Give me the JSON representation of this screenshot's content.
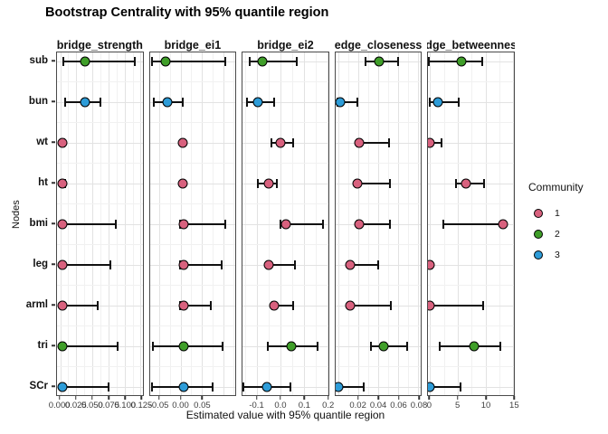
{
  "title": "Bootstrap Centrality with 95% quantile region",
  "x_axis_title": "Estimated value with 95% quantile region",
  "y_axis_title": "Nodes",
  "legend": {
    "title": "Community",
    "items": [
      {
        "label": "1",
        "community": "1"
      },
      {
        "label": "2",
        "community": "2"
      },
      {
        "label": "3",
        "community": "3"
      }
    ]
  },
  "chart_data": {
    "type": "pointrange",
    "orientation": "horizontal",
    "grid": "on",
    "legend_position": "right",
    "y_categories": [
      "sub",
      "bun",
      "wt",
      "ht",
      "bmi",
      "leg",
      "arml",
      "tri",
      "SCr"
    ],
    "community_colors": {
      "1": "#D8617E",
      "2": "#3F9E29",
      "3": "#2D9CD8"
    },
    "facets": [
      {
        "facet": "bridge_strength",
        "xlim": [
          -0.005,
          0.128
        ],
        "ticks": [
          {
            "v": 0.0,
            "label": "0.000"
          },
          {
            "v": 0.025,
            "label": "0.025"
          },
          {
            "v": 0.05,
            "label": "0.050"
          },
          {
            "v": 0.075,
            "label": "0.075"
          },
          {
            "v": 0.1,
            "label": "0.100"
          },
          {
            "v": 0.125,
            "label": "0.125"
          }
        ],
        "points": [
          {
            "node": "sub",
            "community": "2",
            "value": 0.039,
            "lo": 0.003,
            "hi": 0.117
          },
          {
            "node": "bun",
            "community": "3",
            "value": 0.038,
            "lo": 0.006,
            "hi": 0.064
          },
          {
            "node": "wt",
            "community": "1",
            "value": 0.003,
            "lo": 0.001,
            "hi": 0.007
          },
          {
            "node": "ht",
            "community": "1",
            "value": 0.003,
            "lo": 0.001,
            "hi": 0.009
          },
          {
            "node": "bmi",
            "community": "1",
            "value": 0.003,
            "lo": 0.001,
            "hi": 0.088
          },
          {
            "node": "leg",
            "community": "1",
            "value": 0.003,
            "lo": 0.001,
            "hi": 0.08
          },
          {
            "node": "arml",
            "community": "1",
            "value": 0.003,
            "lo": 0.001,
            "hi": 0.06
          },
          {
            "node": "tri",
            "community": "2",
            "value": 0.003,
            "lo": 0.001,
            "hi": 0.091
          },
          {
            "node": "SCr",
            "community": "3",
            "value": 0.003,
            "lo": 0.001,
            "hi": 0.076
          }
        ]
      },
      {
        "facet": "bridge_ei1",
        "xlim": [
          -0.073,
          0.129
        ],
        "ticks": [
          {
            "v": -0.05,
            "label": "-0.05"
          },
          {
            "v": 0.0,
            "label": "0.00"
          },
          {
            "v": 0.05,
            "label": "0.05"
          }
        ],
        "points": [
          {
            "node": "sub",
            "community": "2",
            "value": -0.035,
            "lo": -0.069,
            "hi": 0.108
          },
          {
            "node": "bun",
            "community": "3",
            "value": -0.031,
            "lo": -0.065,
            "hi": 0.006
          },
          {
            "node": "wt",
            "community": "1",
            "value": 0.005,
            "lo": 0.003,
            "hi": 0.007
          },
          {
            "node": "ht",
            "community": "1",
            "value": 0.005,
            "lo": 0.003,
            "hi": 0.007
          },
          {
            "node": "bmi",
            "community": "1",
            "value": 0.006,
            "lo": -0.004,
            "hi": 0.108
          },
          {
            "node": "leg",
            "community": "1",
            "value": 0.006,
            "lo": -0.004,
            "hi": 0.098
          },
          {
            "node": "arml",
            "community": "1",
            "value": 0.006,
            "lo": -0.004,
            "hi": 0.073
          },
          {
            "node": "tri",
            "community": "2",
            "value": 0.006,
            "lo": -0.067,
            "hi": 0.1
          },
          {
            "node": "SCr",
            "community": "3",
            "value": 0.006,
            "lo": -0.071,
            "hi": 0.077
          }
        ]
      },
      {
        "facet": "bridge_ei2",
        "xlim": [
          -0.162,
          0.204
        ],
        "ticks": [
          {
            "v": -0.1,
            "label": "-0.1"
          },
          {
            "v": 0.0,
            "label": "0.0"
          },
          {
            "v": 0.1,
            "label": "0.1"
          },
          {
            "v": 0.2,
            "label": "0.2"
          }
        ],
        "points": [
          {
            "node": "sub",
            "community": "2",
            "value": -0.079,
            "lo": -0.136,
            "hi": 0.072
          },
          {
            "node": "bun",
            "community": "3",
            "value": -0.098,
            "lo": -0.147,
            "hi": -0.023
          },
          {
            "node": "wt",
            "community": "1",
            "value": 0.0,
            "lo": -0.042,
            "hi": 0.057
          },
          {
            "node": "ht",
            "community": "1",
            "value": -0.049,
            "lo": -0.102,
            "hi": -0.011
          },
          {
            "node": "bmi",
            "community": "1",
            "value": 0.023,
            "lo": -0.004,
            "hi": 0.185
          },
          {
            "node": "leg",
            "community": "1",
            "value": -0.049,
            "lo": -0.06,
            "hi": 0.064
          },
          {
            "node": "arml",
            "community": "1",
            "value": -0.026,
            "lo": -0.038,
            "hi": 0.057
          },
          {
            "node": "tri",
            "community": "2",
            "value": 0.045,
            "lo": -0.06,
            "hi": 0.162
          },
          {
            "node": "SCr",
            "community": "3",
            "value": -0.06,
            "lo": -0.162,
            "hi": 0.045
          }
        ]
      },
      {
        "facet": "edge_closeness",
        "xlim": [
          -0.003,
          0.083
        ],
        "ticks": [
          {
            "v": 0.02,
            "label": "0.02"
          },
          {
            "v": 0.04,
            "label": "0.04"
          },
          {
            "v": 0.06,
            "label": "0.06"
          },
          {
            "v": 0.08,
            "label": "0.08"
          }
        ],
        "points": [
          {
            "node": "sub",
            "community": "2",
            "value": 0.041,
            "lo": 0.026,
            "hi": 0.061
          },
          {
            "node": "bun",
            "community": "3",
            "value": 0.002,
            "lo": -0.002,
            "hi": 0.02
          },
          {
            "node": "wt",
            "community": "1",
            "value": 0.021,
            "lo": 0.018,
            "hi": 0.052
          },
          {
            "node": "ht",
            "community": "1",
            "value": 0.019,
            "lo": 0.017,
            "hi": 0.053
          },
          {
            "node": "bmi",
            "community": "1",
            "value": 0.021,
            "lo": 0.018,
            "hi": 0.053
          },
          {
            "node": "leg",
            "community": "1",
            "value": 0.012,
            "lo": 0.01,
            "hi": 0.041
          },
          {
            "node": "arml",
            "community": "1",
            "value": 0.012,
            "lo": 0.01,
            "hi": 0.054
          },
          {
            "node": "tri",
            "community": "2",
            "value": 0.045,
            "lo": 0.032,
            "hi": 0.07
          },
          {
            "node": "SCr",
            "community": "3",
            "value": 0.0,
            "lo": -0.003,
            "hi": 0.026
          }
        ]
      },
      {
        "facet": "edge_betweenness",
        "xlim": [
          -0.32,
          15.1
        ],
        "ticks": [
          {
            "v": 0,
            "label": "0"
          },
          {
            "v": 5,
            "label": "5"
          },
          {
            "v": 10,
            "label": "10"
          },
          {
            "v": 15,
            "label": "15"
          }
        ],
        "points": [
          {
            "node": "sub",
            "community": "2",
            "value": 5.6,
            "lo": -0.3,
            "hi": 9.6
          },
          {
            "node": "bun",
            "community": "3",
            "value": 1.4,
            "lo": -0.2,
            "hi": 5.4
          },
          {
            "node": "wt",
            "community": "1",
            "value": 0.0,
            "lo": -0.2,
            "hi": 2.2
          },
          {
            "node": "ht",
            "community": "1",
            "value": 6.4,
            "lo": 4.5,
            "hi": 9.9
          },
          {
            "node": "bmi",
            "community": "1",
            "value": 13.2,
            "lo": 2.2,
            "hi": 13.3
          },
          {
            "node": "leg",
            "community": "1",
            "value": 0.0,
            "lo": -0.2,
            "hi": 0.4
          },
          {
            "node": "arml",
            "community": "1",
            "value": 0.0,
            "lo": -0.2,
            "hi": 9.7
          },
          {
            "node": "tri",
            "community": "2",
            "value": 8.0,
            "lo": 1.6,
            "hi": 12.9
          },
          {
            "node": "SCr",
            "community": "3",
            "value": 0.0,
            "lo": -0.2,
            "hi": 5.6
          }
        ]
      }
    ]
  }
}
